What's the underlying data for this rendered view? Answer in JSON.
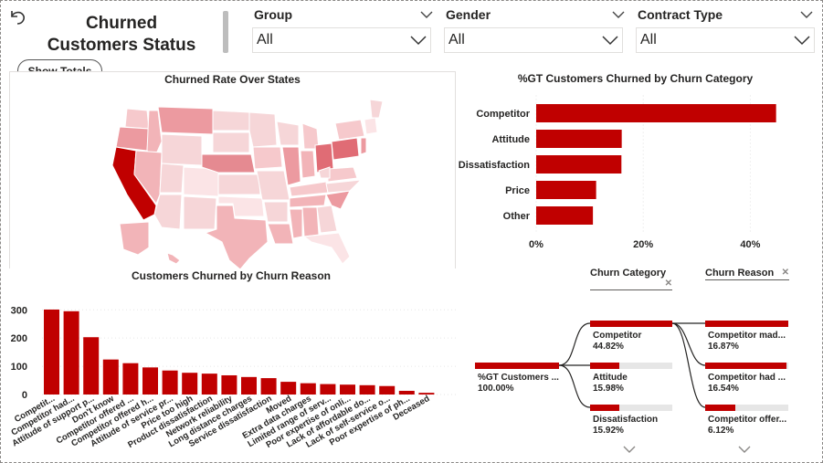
{
  "header": {
    "title_line1": "Churned",
    "title_line2": "Customers Status",
    "show_totals_label": "Show Totals"
  },
  "slicers": [
    {
      "label": "Group",
      "value": "All"
    },
    {
      "label": "Gender",
      "value": "All"
    },
    {
      "label": "Contract Type",
      "value": "All"
    }
  ],
  "map": {
    "title": "Churned Rate Over States",
    "colors": {
      "low": "#fbe4e6",
      "mid": "#ec9aa0",
      "high": "#c00000",
      "border": "#ffffff"
    }
  },
  "category_chart": {
    "title": "%GT Customers Churned by Churn Category",
    "color": "#c00000",
    "x_ticks": [
      "0%",
      "20%",
      "40%"
    ]
  },
  "reason_chart": {
    "title": "Customers Churned by Churn Reason",
    "color": "#c00000",
    "y_ticks": [
      "0",
      "100",
      "200",
      "300"
    ]
  },
  "decomposition_tree": {
    "headers": [
      "Churn Category",
      "Churn Reason"
    ],
    "root": {
      "name": "%GT Customers ...",
      "value": "100.00%"
    },
    "level1": [
      {
        "name": "Competitor",
        "value": "44.82%",
        "pct": 44.82
      },
      {
        "name": "Attitude",
        "value": "15.98%",
        "pct": 15.98
      },
      {
        "name": "Dissatisfaction",
        "value": "15.92%",
        "pct": 15.92
      }
    ],
    "level2": [
      {
        "name": "Competitor mad...",
        "value": "16.87%",
        "pct": 16.87
      },
      {
        "name": "Competitor had ...",
        "value": "16.54%",
        "pct": 16.54
      },
      {
        "name": "Competitor offer...",
        "value": "6.12%",
        "pct": 6.12
      }
    ],
    "color": "#c00000",
    "track_color": "#e6e6e6"
  },
  "chart_data": [
    {
      "type": "bar",
      "orientation": "horizontal",
      "title": "%GT Customers Churned by Churn Category",
      "categories": [
        "Competitor",
        "Attitude",
        "Dissatisfaction",
        "Price",
        "Other"
      ],
      "values": [
        44.82,
        15.98,
        15.92,
        11.2,
        10.6
      ],
      "xlabel": "",
      "ylabel": "",
      "xlim": [
        0,
        50
      ],
      "x_ticks": [
        "0%",
        "20%",
        "40%"
      ]
    },
    {
      "type": "bar",
      "orientation": "vertical",
      "title": "Customers Churned by Churn Reason",
      "categories": [
        "Competit...",
        "Competitor had...",
        "Attitude of support p...",
        "Don't know",
        "Competitor offered ...",
        "Competitor offered h...",
        "Attitude of service pr...",
        "Price too high",
        "Product dissatisfaction",
        "Network reliability",
        "Long distance charges",
        "Service dissatisfaction",
        "Moved",
        "Extra data charges",
        "Limited range of serv...",
        "Poor expertise of onli...",
        "Lack of affordable do...",
        "Lack of self-service o...",
        "Poor expertise of ph...",
        "Deceased"
      ],
      "values": [
        301,
        295,
        203,
        124,
        111,
        96,
        85,
        77,
        74,
        68,
        62,
        58,
        45,
        40,
        37,
        35,
        33,
        30,
        13,
        6
      ],
      "ylim": [
        0,
        330
      ],
      "y_ticks": [
        0,
        100,
        200,
        300
      ]
    }
  ]
}
